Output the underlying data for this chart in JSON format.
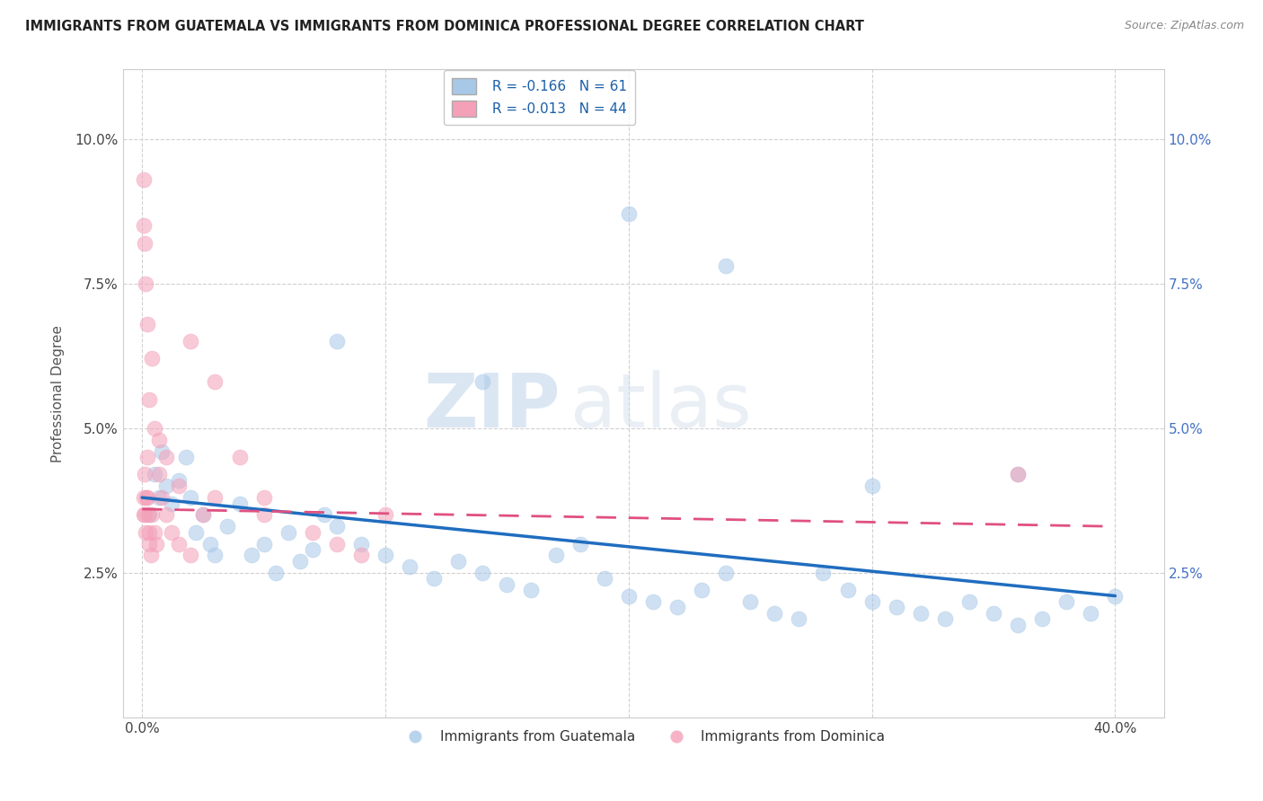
{
  "title": "IMMIGRANTS FROM GUATEMALA VS IMMIGRANTS FROM DOMINICA PROFESSIONAL DEGREE CORRELATION CHART",
  "source": "Source: ZipAtlas.com",
  "ylabel": "Professional Degree",
  "x_tick_labels": [
    "0.0%",
    "",
    "",
    "",
    "40.0%"
  ],
  "x_ticks": [
    0.0,
    10.0,
    20.0,
    30.0,
    40.0
  ],
  "y_tick_labels": [
    "2.5%",
    "5.0%",
    "7.5%",
    "10.0%"
  ],
  "y_ticks": [
    2.5,
    5.0,
    7.5,
    10.0
  ],
  "xlim": [
    -0.8,
    42.0
  ],
  "ylim": [
    0.0,
    11.2
  ],
  "legend_label_1": "R = -0.166   N =  61",
  "legend_label_2": "R = -0.013   N =  44",
  "legend_bottom_1": "Immigrants from Guatemala",
  "legend_bottom_2": "Immigrants from Dominica",
  "blue_color": "#a8c8e8",
  "pink_color": "#f4a0b8",
  "blue_line_color": "#1f6dbf",
  "pink_line_color": "#e05080",
  "watermark_zip": "ZIP",
  "watermark_atlas": "atlas",
  "background_color": "#ffffff",
  "guatemala_x": [
    0.3,
    0.5,
    0.7,
    0.8,
    1.0,
    1.2,
    1.5,
    1.8,
    2.0,
    2.2,
    2.5,
    2.8,
    3.0,
    3.5,
    4.0,
    4.5,
    5.0,
    5.5,
    6.0,
    6.5,
    7.0,
    7.5,
    8.0,
    9.0,
    10.0,
    11.0,
    12.0,
    13.0,
    14.0,
    15.0,
    16.0,
    17.0,
    18.0,
    19.0,
    20.0,
    21.0,
    22.0,
    23.0,
    24.0,
    25.0,
    26.0,
    27.0,
    28.0,
    29.0,
    30.0,
    31.0,
    32.0,
    33.0,
    34.0,
    35.0,
    36.0,
    37.0,
    38.0,
    39.0,
    40.0,
    20.0,
    24.0,
    8.0,
    14.0,
    30.0,
    36.0
  ],
  "guatemala_y": [
    3.5,
    4.2,
    3.8,
    4.6,
    4.0,
    3.7,
    4.1,
    4.5,
    3.8,
    3.2,
    3.5,
    3.0,
    2.8,
    3.3,
    3.7,
    2.8,
    3.0,
    2.5,
    3.2,
    2.7,
    2.9,
    3.5,
    3.3,
    3.0,
    2.8,
    2.6,
    2.4,
    2.7,
    2.5,
    2.3,
    2.2,
    2.8,
    3.0,
    2.4,
    2.1,
    2.0,
    1.9,
    2.2,
    2.5,
    2.0,
    1.8,
    1.7,
    2.5,
    2.2,
    2.0,
    1.9,
    1.8,
    1.7,
    2.0,
    1.8,
    1.6,
    1.7,
    2.0,
    1.8,
    2.1,
    8.7,
    7.8,
    6.5,
    5.8,
    4.0,
    4.2
  ],
  "dominica_x": [
    0.05,
    0.08,
    0.1,
    0.12,
    0.15,
    0.18,
    0.2,
    0.22,
    0.25,
    0.28,
    0.3,
    0.35,
    0.4,
    0.5,
    0.6,
    0.7,
    0.8,
    1.0,
    1.2,
    1.5,
    2.0,
    2.5,
    3.0,
    4.0,
    5.0,
    7.0,
    9.0,
    10.0,
    0.05,
    0.08,
    0.1,
    0.15,
    0.2,
    0.3,
    0.4,
    0.5,
    0.7,
    1.0,
    1.5,
    2.0,
    3.0,
    5.0,
    8.0,
    36.0
  ],
  "dominica_y": [
    3.5,
    3.8,
    4.2,
    3.5,
    3.2,
    3.8,
    4.5,
    3.8,
    3.5,
    3.2,
    3.0,
    2.8,
    3.5,
    3.2,
    3.0,
    4.2,
    3.8,
    3.5,
    3.2,
    3.0,
    2.8,
    3.5,
    3.8,
    4.5,
    3.8,
    3.2,
    2.8,
    3.5,
    9.3,
    8.5,
    8.2,
    7.5,
    6.8,
    5.5,
    6.2,
    5.0,
    4.8,
    4.5,
    4.0,
    6.5,
    5.8,
    3.5,
    3.0,
    4.2
  ],
  "guatemala_R": -0.166,
  "dominica_R": -0.013,
  "guatemala_N": 61,
  "dominica_N": 44,
  "blue_line_x0": 0.0,
  "blue_line_y0": 3.8,
  "blue_line_x1": 40.0,
  "blue_line_y1": 2.1,
  "pink_line_x0": 0.0,
  "pink_line_y0": 3.6,
  "pink_line_x1": 40.0,
  "pink_line_y1": 3.3
}
